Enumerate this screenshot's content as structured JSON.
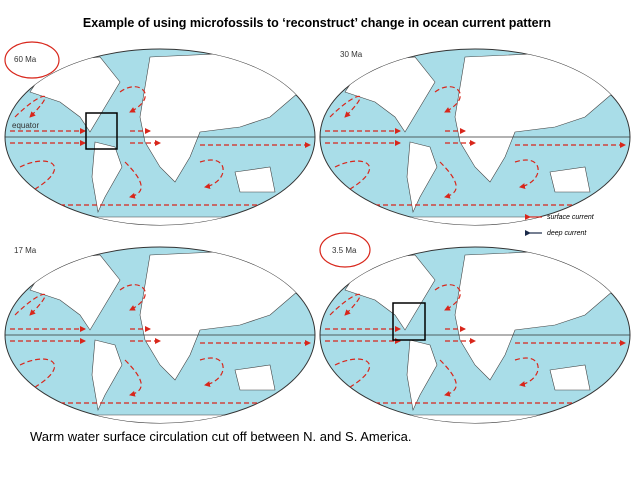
{
  "title": "Example of using microfossils to ‘reconstruct’ change in ocean current pattern",
  "maps": [
    {
      "label": "60 Ma"
    },
    {
      "label": "30 Ma"
    },
    {
      "label": "17 Ma"
    },
    {
      "label": "3.5 Ma"
    }
  ],
  "equator_label": "equator",
  "legend": {
    "surface": "surface current",
    "deep": "deep current"
  },
  "caption": "Warm water surface circulation cut off between N. and S. America."
}
